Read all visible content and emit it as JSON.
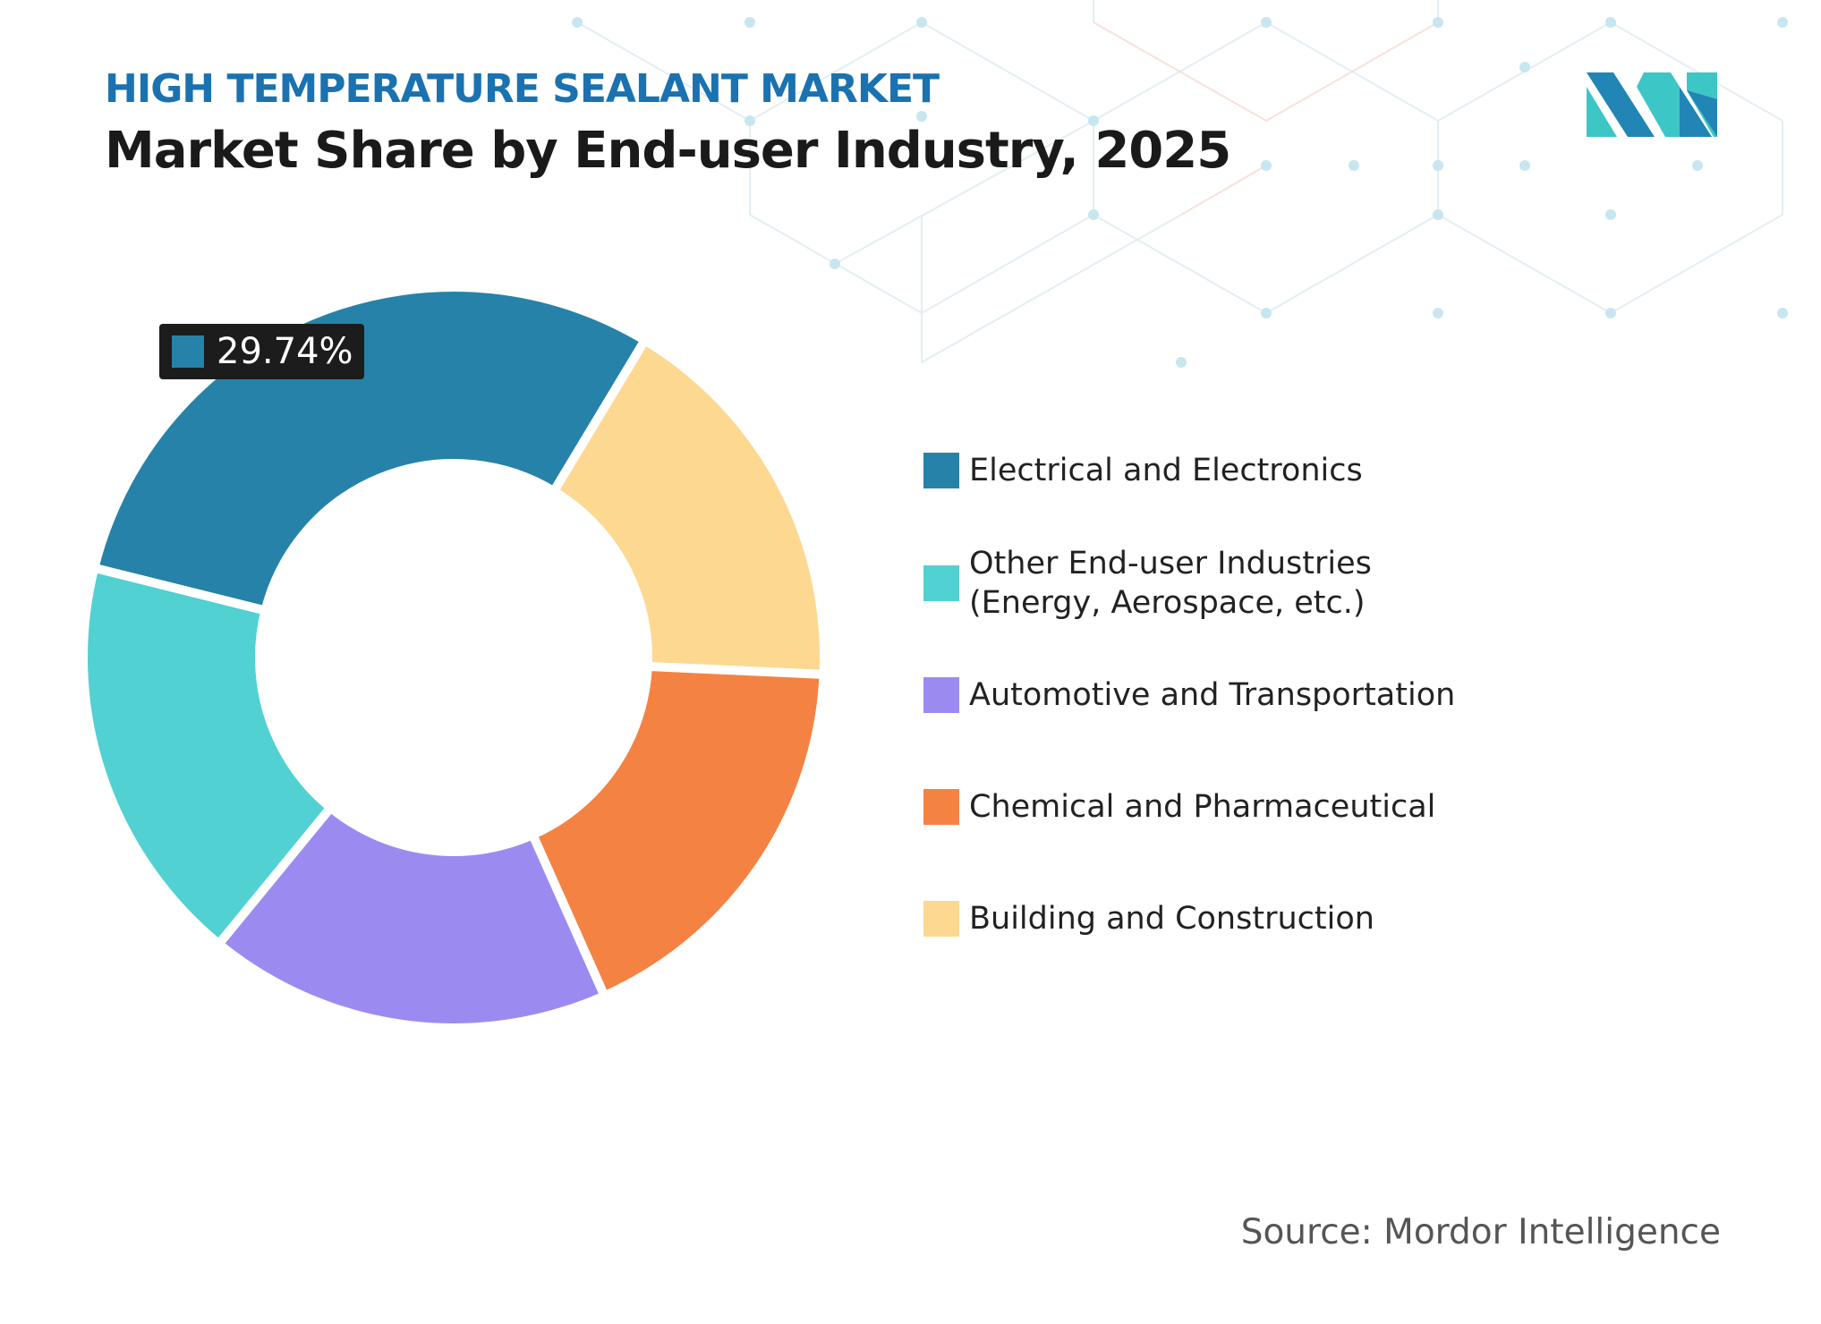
{
  "header": {
    "kicker": "HIGH TEMPERATURE SEALANT MARKET",
    "title": "Market Share by End-user Industry, 2025"
  },
  "source": "Source: Mordor Intelligence",
  "colors": {
    "accent": "#1a72b0",
    "logo_dark": "#2185b5",
    "logo_light": "#3cc6c6"
  },
  "chart_data": {
    "type": "donut",
    "title": "Market Share by End-user Industry, 2025",
    "unit": "%",
    "categories": [
      "Electrical and Electronics",
      "Building and Construction",
      "Chemical and Pharmaceutical",
      "Automotive and Transportation",
      "Other End-user Industries (Energy, Aerospace, etc.)"
    ],
    "values": [
      29.74,
      17.1,
      17.6,
      17.6,
      17.96
    ],
    "colors": [
      "#2682a8",
      "#fdd891",
      "#f48343",
      "#9b8bf0",
      "#52d1d2"
    ],
    "data_label": {
      "category": "Electrical and Electronics",
      "text": "29.74%"
    },
    "legend_position": "right",
    "legend": [
      {
        "label": "Electrical and Electronics",
        "color": "#2682a8"
      },
      {
        "label": "Other End-user Industries (Energy, Aerospace, etc.)",
        "line1": "Other End-user Industries",
        "line2": "(Energy, Aerospace, etc.)",
        "color": "#52d1d2"
      },
      {
        "label": "Automotive and Transportation",
        "color": "#9b8bf0"
      },
      {
        "label": "Chemical and Pharmaceutical",
        "color": "#f48343"
      },
      {
        "label": "Building and Construction",
        "color": "#fdd891"
      }
    ]
  }
}
